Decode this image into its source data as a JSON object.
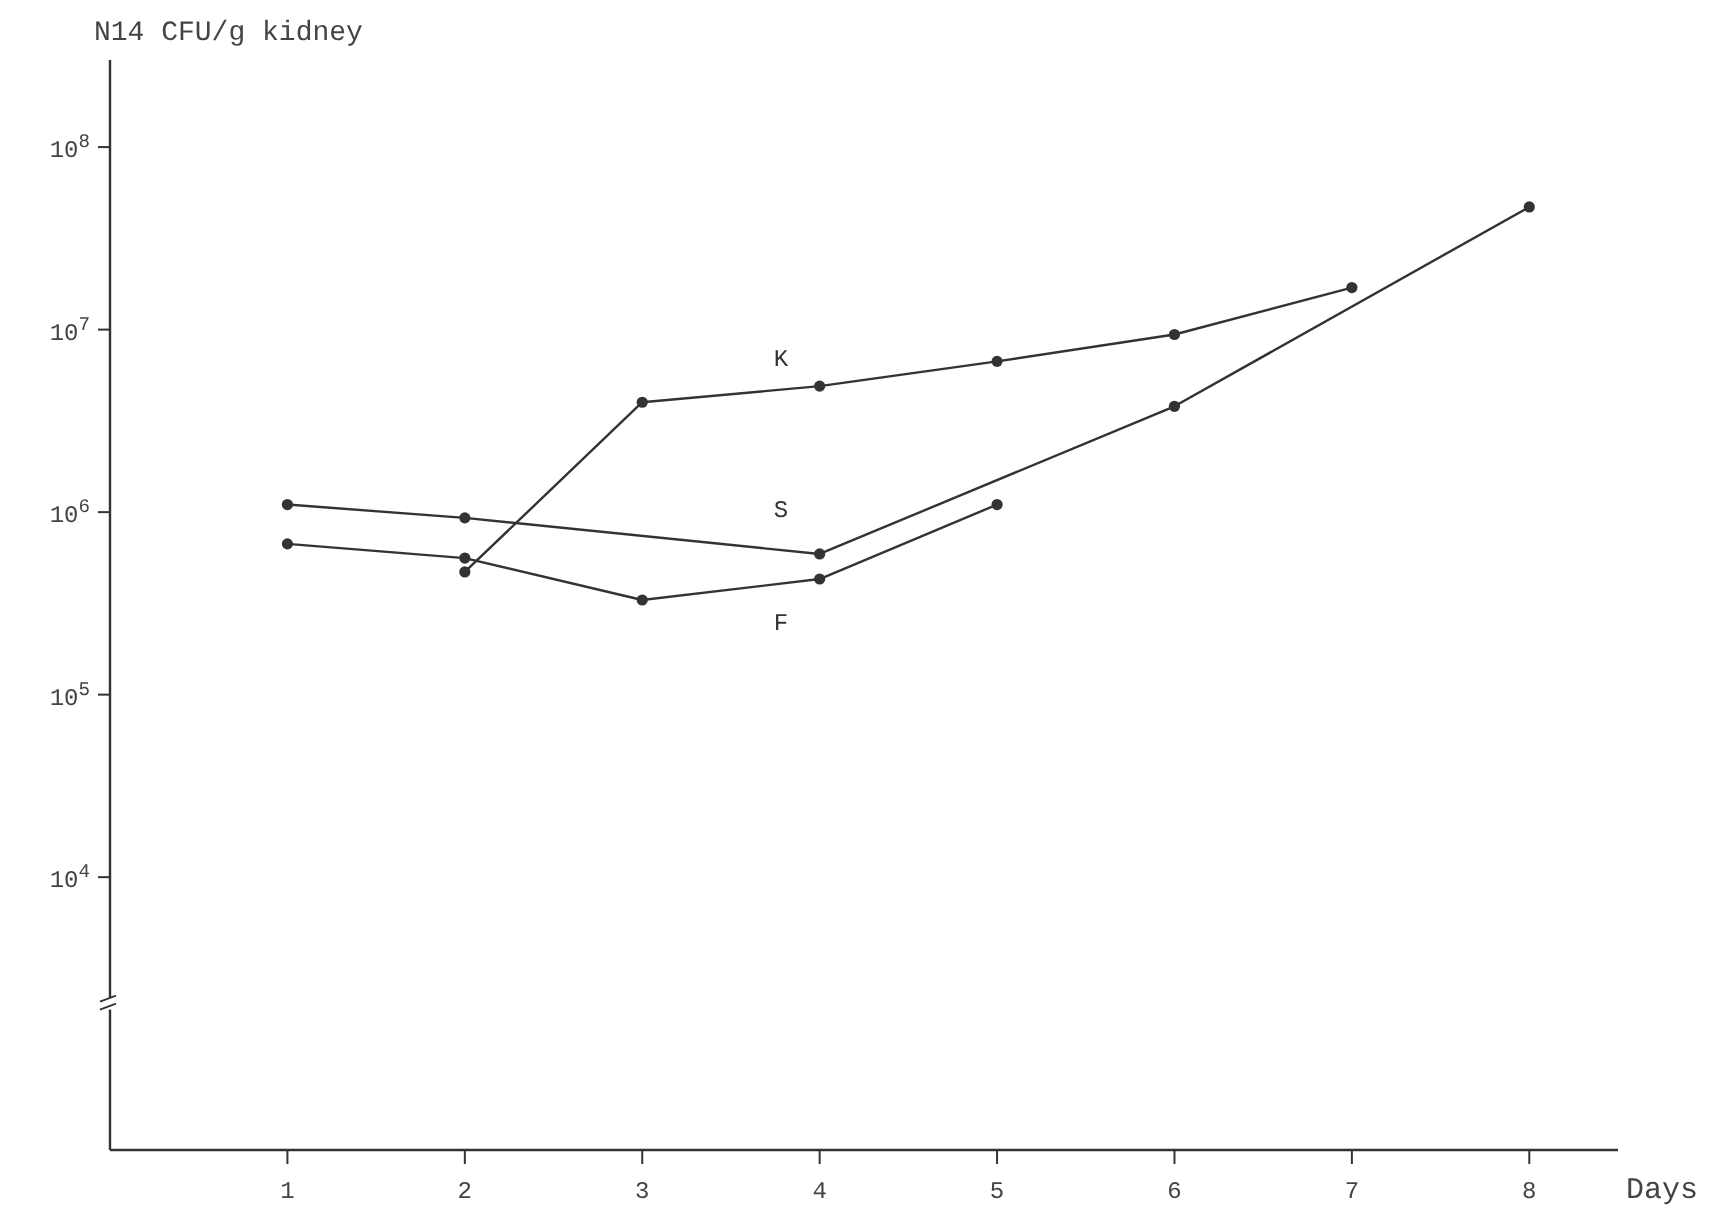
{
  "chart_data": {
    "type": "line",
    "ylabel": "N14 CFU/g kidney",
    "xlabel": "Days",
    "log": "y",
    "grid": false,
    "marker": "circle",
    "line_style": "solid",
    "xlim": [
      0,
      8.5
    ],
    "xticks": [
      1,
      2,
      3,
      4,
      5,
      6,
      7,
      8
    ],
    "ylim": [
      320,
      300000000
    ],
    "yticks": [
      {
        "value": 10000,
        "label": "10$^{4}$"
      },
      {
        "value": 100000,
        "label": "10$^{5}$"
      },
      {
        "value": 1000000,
        "label": "10$^{6}$"
      },
      {
        "value": 10000000,
        "label": "10$^{7}$"
      },
      {
        "value": 100000000,
        "label": "10$^{8}$"
      }
    ],
    "series": [
      {
        "name": "K",
        "color": "#333333",
        "x": [
          2,
          3,
          4,
          5,
          6,
          7
        ],
        "values": [
          470000,
          4000000,
          4900000,
          6700000,
          9400000,
          17000000
        ]
      },
      {
        "name": "S",
        "color": "#333333",
        "x": [
          1,
          2,
          4,
          6,
          8
        ],
        "values": [
          1100000,
          930000,
          590000,
          3800000,
          47000000
        ]
      },
      {
        "name": "F",
        "color": "#333333",
        "x": [
          1,
          2,
          3,
          4,
          5
        ],
        "values": [
          670000,
          560000,
          330000,
          430000,
          1100000
        ]
      }
    ]
  }
}
